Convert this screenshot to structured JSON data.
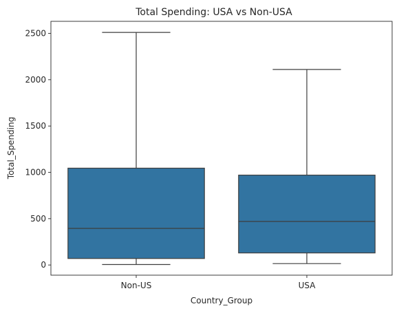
{
  "chart_data": {
    "type": "box",
    "title": "Total Spending: USA vs Non-USA",
    "xlabel": "Country_Group",
    "ylabel": "Total_Spending",
    "categories": [
      "Non-US",
      "USA"
    ],
    "ylim": [
      -110,
      2630
    ],
    "yticks": [
      0,
      500,
      1000,
      1500,
      2000,
      2500
    ],
    "ytick_labels": [
      "0",
      "500",
      "1000",
      "1500",
      "2000",
      "2500"
    ],
    "boxes": [
      {
        "category": "Non-US",
        "whisker_low": 5,
        "q1": 70,
        "median": 395,
        "q3": 1045,
        "whisker_high": 2510
      },
      {
        "category": "USA",
        "whisker_low": 15,
        "q1": 130,
        "median": 470,
        "q3": 970,
        "whisker_high": 2110
      }
    ],
    "box_color": "#3274a1",
    "line_color": "#3d3d3d",
    "grid": false,
    "legend": "none"
  }
}
